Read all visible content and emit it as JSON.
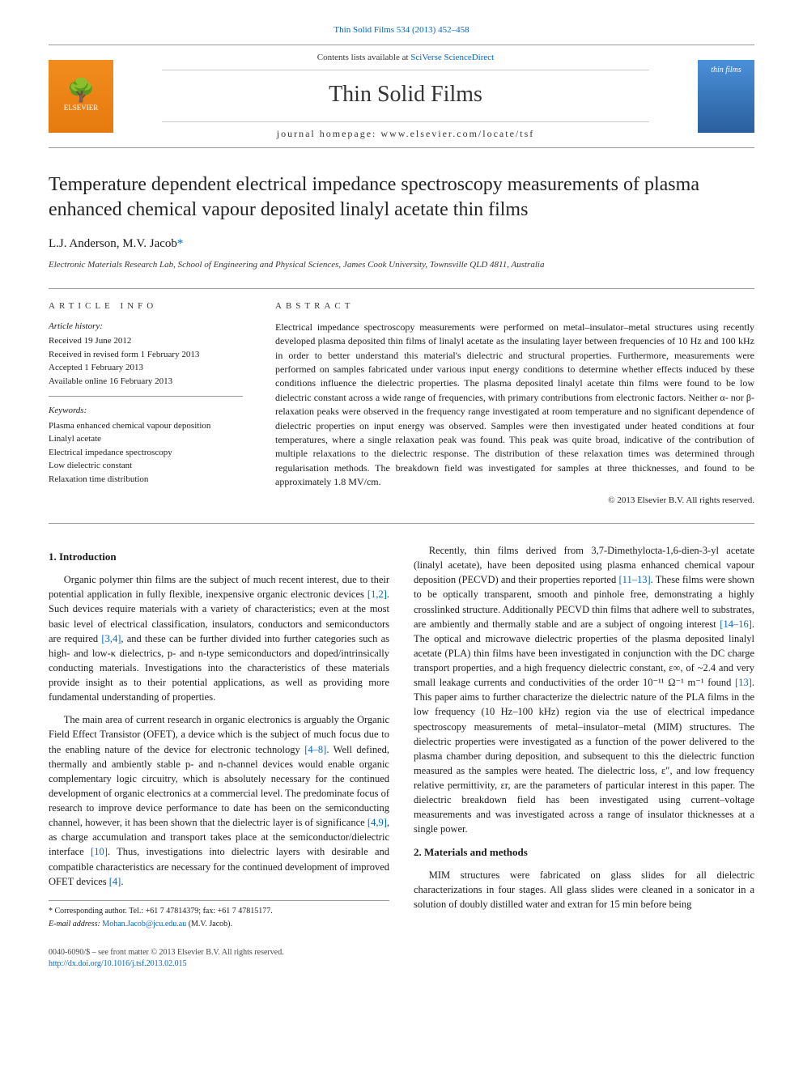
{
  "top_link": "Thin Solid Films 534 (2013) 452–458",
  "header": {
    "contents_line_prefix": "Contents lists available at ",
    "contents_line_link": "SciVerse ScienceDirect",
    "journal_name": "Thin Solid Films",
    "homepage_label": "journal homepage: ",
    "homepage_url": "www.elsevier.com/locate/tsf",
    "publisher_name": "ELSEVIER",
    "cover_text": "thin films"
  },
  "article": {
    "title": "Temperature dependent electrical impedance spectroscopy measurements of plasma enhanced chemical vapour deposited linalyl acetate thin films",
    "authors_html": "L.J. Anderson, M.V. Jacob",
    "author1": "L.J. Anderson, ",
    "author2": "M.V. Jacob",
    "corr_marker": "*",
    "affiliation": "Electronic Materials Research Lab, School of Engineering and Physical Sciences, James Cook University, Townsville QLD 4811, Australia"
  },
  "info": {
    "heading": "ARTICLE INFO",
    "history_label": "Article history:",
    "history": [
      "Received 19 June 2012",
      "Received in revised form 1 February 2013",
      "Accepted 1 February 2013",
      "Available online 16 February 2013"
    ],
    "keywords_label": "Keywords:",
    "keywords": [
      "Plasma enhanced chemical vapour deposition",
      "Linalyl acetate",
      "Electrical impedance spectroscopy",
      "Low dielectric constant",
      "Relaxation time distribution"
    ]
  },
  "abstract": {
    "heading": "ABSTRACT",
    "text": "Electrical impedance spectroscopy measurements were performed on metal–insulator–metal structures using recently developed plasma deposited thin films of linalyl acetate as the insulating layer between frequencies of 10 Hz and 100 kHz in order to better understand this material's dielectric and structural properties. Furthermore, measurements were performed on samples fabricated under various input energy conditions to determine whether effects induced by these conditions influence the dielectric properties. The plasma deposited linalyl acetate thin films were found to be low dielectric constant across a wide range of frequencies, with primary contributions from electronic factors. Neither α- nor β-relaxation peaks were observed in the frequency range investigated at room temperature and no significant dependence of dielectric properties on input energy was observed. Samples were then investigated under heated conditions at four temperatures, where a single relaxation peak was found. This peak was quite broad, indicative of the contribution of multiple relaxations to the dielectric response. The distribution of these relaxation times was determined through regularisation methods. The breakdown field was investigated for samples at three thicknesses, and found to be approximately 1.8 MV/cm.",
    "copyright": "© 2013 Elsevier B.V. All rights reserved."
  },
  "body": {
    "sec1_heading": "1. Introduction",
    "p1a": "Organic polymer thin films are the subject of much recent interest, due to their potential application in fully flexible, inexpensive organic electronic devices ",
    "p1_ref1": "[1,2]",
    "p1b": ". Such devices require materials with a variety of characteristics; even at the most basic level of electrical classification, insulators, conductors and semiconductors are required ",
    "p1_ref2": "[3,4]",
    "p1c": ", and these can be further divided into further categories such as high- and low-κ dielectrics, p- and n-type semiconductors and doped/intrinsically conducting materials. Investigations into the characteristics of these materials provide insight as to their potential applications, as well as providing more fundamental understanding of properties.",
    "p2a": "The main area of current research in organic electronics is arguably the Organic Field Effect Transistor (OFET), a device which is the subject of much focus due to the enabling nature of the device for electronic technology ",
    "p2_ref1": "[4–8]",
    "p2b": ". Well defined, thermally and ambiently stable p- and n-channel devices would enable organic complementary logic circuitry, which is absolutely necessary for the continued development of organic electronics at a commercial level. The predominate focus of research to improve device performance to date has been on the semiconducting channel, however, it has been shown that the dielectric layer is of significance ",
    "p2_ref2": "[4,9]",
    "p2c": ", as charge accumulation and transport takes place at the semiconductor/dielectric interface ",
    "p2_ref3": "[10]",
    "p2d": ". Thus, investigations into dielectric layers with desirable and compatible characteristics are necessary for the continued development of improved OFET devices ",
    "p2_ref4": "[4]",
    "p2e": ".",
    "p3a": "Recently, thin films derived from 3,7-Dimethylocta-1,6-dien-3-yl acetate (linalyl acetate), have been deposited using plasma enhanced chemical vapour deposition (PECVD) and their properties reported ",
    "p3_ref1": "[11–13]",
    "p3b": ". These films were shown to be optically transparent, smooth and pinhole free, demonstrating a highly crosslinked structure. Additionally PECVD thin films that adhere well to substrates, are ambiently and thermally stable and are a subject of ongoing interest ",
    "p3_ref2": "[14–16]",
    "p3c": ". The optical and microwave dielectric properties of the plasma deposited linalyl acetate (PLA) thin films have been investigated in conjunction with the DC charge transport properties, and a high frequency dielectric constant, ε∞, of ~2.4 and very small leakage currents and conductivities of the order 10⁻¹¹ Ω⁻¹ m⁻¹ found ",
    "p3_ref3": "[13]",
    "p3d": ". This paper aims to further characterize the dielectric nature of the PLA films in the low frequency (10 Hz–100 kHz) region via the use of electrical impedance spectroscopy measurements of metal–insulator–metal (MIM) structures. The dielectric properties were investigated as a function of the power delivered to the plasma chamber during deposition, and subsequent to this the dielectric function measured as the samples were heated. The dielectric loss, ε″, and low frequency relative permittivity, εr, are the parameters of particular interest in this paper. The dielectric breakdown field has been investigated using current–voltage measurements and was investigated across a range of insulator thicknesses at a single power.",
    "sec2_heading": "2. Materials and methods",
    "p4": "MIM structures were fabricated on glass slides for all dielectric characterizations in four stages. All glass slides were cleaned in a sonicator in a solution of doubly distilled water and extran for 15 min before being"
  },
  "footnote": {
    "corr_label": "* Corresponding author. Tel.: +61 7 47814379; fax: +61 7 47815177.",
    "email_label": "E-mail address: ",
    "email": "Mohan.Jacob@jcu.edu.au",
    "email_who": " (M.V. Jacob)."
  },
  "bottom": {
    "issn_line": "0040-6090/$ – see front matter © 2013 Elsevier B.V. All rights reserved.",
    "doi": "http://dx.doi.org/10.1016/j.tsf.2013.02.015"
  },
  "colors": {
    "link": "#0066cc",
    "rule": "#999999",
    "text": "#1a1a1a",
    "elsevier_bg": "#f28c1e",
    "cover_bg": "#4a90d9"
  },
  "typography": {
    "body_fontsize_pt": 10,
    "title_fontsize_pt": 18,
    "journal_fontsize_pt": 22,
    "info_fontsize_pt": 8
  }
}
